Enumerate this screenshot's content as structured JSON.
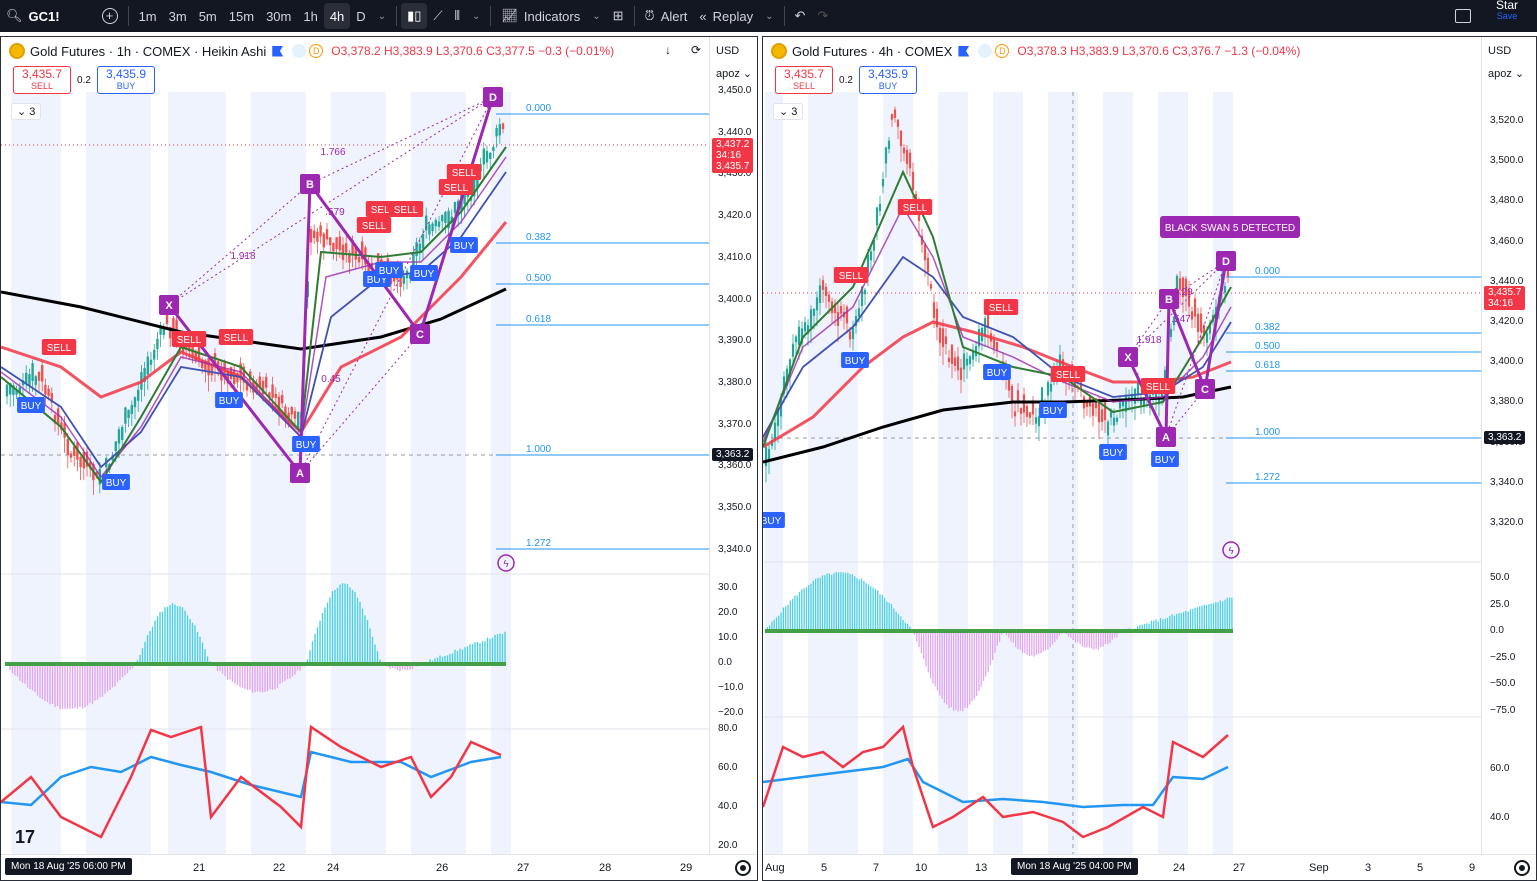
{
  "toolbar": {
    "symbol": "GC1!",
    "intervals": [
      "1m",
      "3m",
      "5m",
      "15m",
      "30m",
      "1h",
      "4h",
      "D"
    ],
    "selected_interval": "4h",
    "indicators_label": "Indicators",
    "alert_label": "Alert",
    "replay_label": "Replay",
    "star_label": "Star",
    "save_label": "Save"
  },
  "left": {
    "title": "Gold Futures · 1h · COMEX · Heikin Ashi",
    "d_badge": "D",
    "ohlc": {
      "o": "O3,378.2",
      "h": "H3,383.9",
      "l": "L3,370.6",
      "c": "C3,377.5",
      "chg": "−0.3 (−0.01%)"
    },
    "sell_price": "3,435.7",
    "sell_label": "SELL",
    "buy_price": "3,435.9",
    "buy_label": "BUY",
    "spread": "0.2",
    "indicator_count": "3",
    "currency": "USD",
    "scale_mode": "apoz",
    "price_ticks": [
      "3,450.0",
      "3,440.0",
      "3,430.0",
      "3,420.0",
      "3,410.0",
      "3,400.0",
      "3,390.0",
      "3,380.0",
      "3,370.0",
      "3,360.0",
      "3,350.0",
      "3,340.0"
    ],
    "last_price_tag": [
      "3,437.2",
      "34:16",
      "3,435.7"
    ],
    "crosshair_tag": "3,363.2",
    "osc_ticks": [
      "30.0",
      "20.0",
      "10.0",
      "0.0",
      "−10.0",
      "−20.0"
    ],
    "rsi_ticks": [
      "80.0",
      "60.0",
      "40.0",
      "20.0"
    ],
    "fib_labels": [
      "0.000",
      "0.382",
      "0.500",
      "0.618",
      "1.000",
      "1.272"
    ],
    "pattern_points": [
      "X",
      "A",
      "B",
      "C",
      "D"
    ],
    "ratio_labels": [
      "1.766",
      "1.918",
      ".579",
      "0.45"
    ],
    "signals_sell": [
      "SELL",
      "SELL",
      "SELL",
      "SELL",
      "SELL",
      "SELL",
      "SELL",
      "SELL"
    ],
    "signals_buy": [
      "BUY",
      "BUY",
      "BUY",
      "BUY",
      "BUY",
      "BUY",
      "BUY",
      "BUY"
    ],
    "time_labels": [
      "21",
      "22",
      "24",
      "26",
      "27",
      "28",
      "29"
    ],
    "time_selected": "Mon 18 Aug '25   06:00 PM"
  },
  "right": {
    "title": "Gold Futures · 4h · COMEX",
    "d_badge": "D",
    "ohlc": {
      "o": "O3,378.3",
      "h": "H3,383.9",
      "l": "L3,370.6",
      "c": "C3,376.7",
      "chg": "−1.3 (−0.04%)"
    },
    "sell_price": "3,435.7",
    "sell_label": "SELL",
    "buy_price": "3,435.9",
    "buy_label": "BUY",
    "spread": "0.2",
    "indicator_count": "3",
    "currency": "USD",
    "scale_mode": "apoz",
    "price_ticks": [
      "3,520.0",
      "3,500.0",
      "3,480.0",
      "3,460.0",
      "3,440.0",
      "3,420.0",
      "3,400.0",
      "3,380.0",
      "3,360.0",
      "3,340.0",
      "3,320.0"
    ],
    "last_price_tag": [
      "3,435.7",
      "34:16"
    ],
    "crosshair_tag": "3,363.2",
    "osc_ticks": [
      "50.0",
      "25.0",
      "0.0",
      "−25.0",
      "−50.0",
      "−75.0"
    ],
    "rsi_ticks": [
      "60.0",
      "40.0"
    ],
    "fib_labels": [
      "0.000",
      "0.382",
      "0.500",
      "0.618",
      "1.000",
      "1.272"
    ],
    "pattern_points": [
      "X",
      "A",
      "B",
      "C",
      "D"
    ],
    "ratio_labels": [
      "1.918",
      ".547",
      "1.29"
    ],
    "detected_label": "BLACK SWAN 5 DETECTED",
    "time_labels": [
      "Aug",
      "5",
      "7",
      "10",
      "13",
      "24",
      "27",
      "Sep",
      "3",
      "5",
      "9"
    ],
    "time_selected": "Mon 18 Aug '25   04:00 PM"
  },
  "colors": {
    "sell": "#f23645",
    "buy": "#2962ff",
    "pattern": "#9c27b0",
    "fib": "#2196f3",
    "up": "#26a69a",
    "down": "#ef5350"
  }
}
